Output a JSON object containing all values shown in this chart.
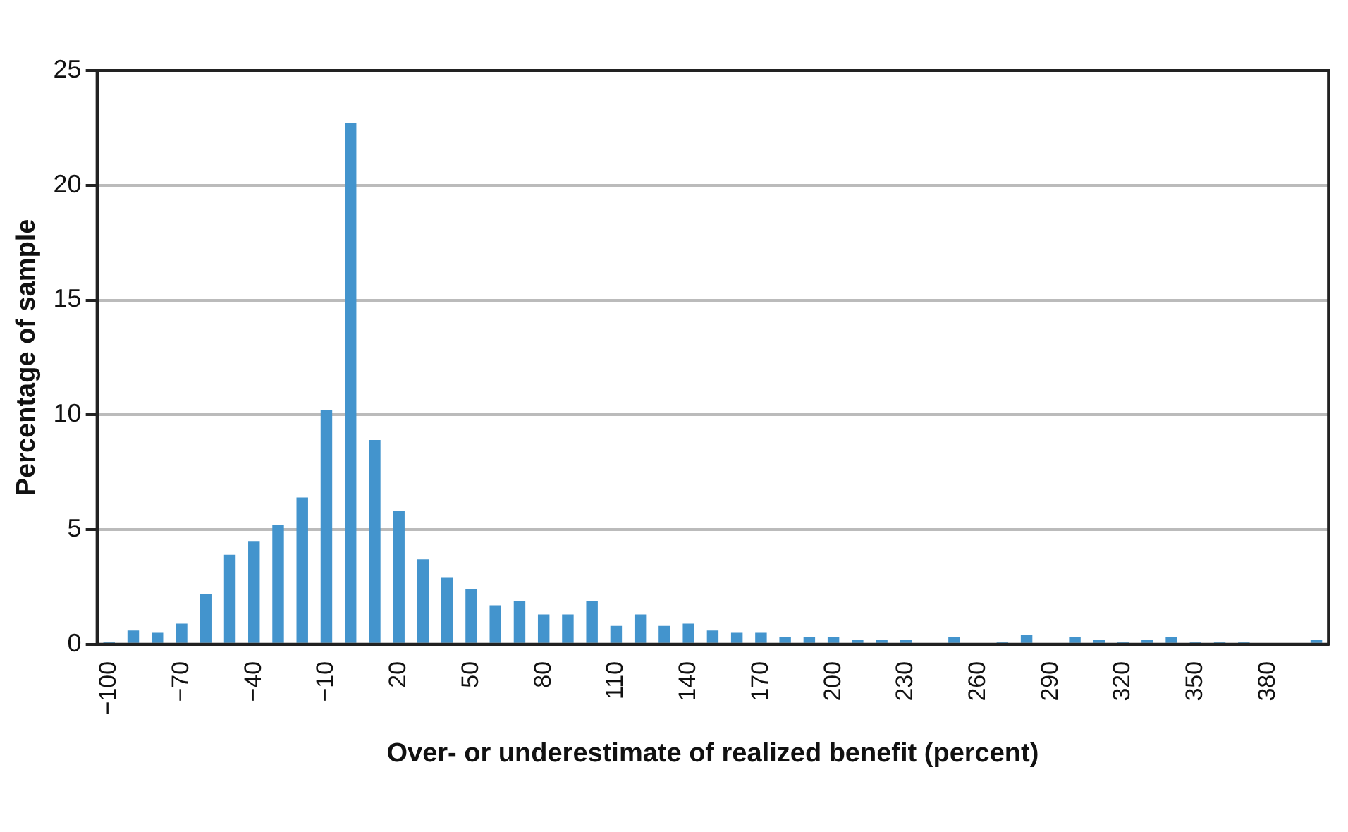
{
  "chart_data": {
    "type": "bar",
    "xlabel": "Over- or underestimate of realized benefit (percent)",
    "ylabel": "Percentage of sample",
    "categories": [
      "−100",
      null,
      null,
      "−70",
      null,
      null,
      "−40",
      null,
      null,
      "−10",
      null,
      null,
      "20",
      null,
      null,
      "50",
      null,
      null,
      "80",
      null,
      null,
      "110",
      null,
      null,
      "140",
      null,
      null,
      "170",
      null,
      null,
      "200",
      null,
      null,
      "230",
      null,
      null,
      "260",
      null,
      null,
      "290",
      null,
      null,
      "320",
      null,
      null,
      "350",
      null,
      null,
      "380",
      null,
      null
    ],
    "values": [
      0.1,
      0.6,
      0.5,
      0.9,
      2.2,
      3.9,
      4.5,
      5.2,
      6.4,
      10.2,
      22.7,
      8.9,
      5.8,
      3.7,
      2.9,
      2.4,
      1.7,
      1.9,
      1.3,
      1.3,
      1.9,
      0.8,
      1.3,
      0.8,
      0.9,
      0.6,
      0.5,
      0.5,
      0.3,
      0.3,
      0.3,
      0.2,
      0.2,
      0.2,
      0,
      0.3,
      0,
      0.1,
      0.4,
      0,
      0.3,
      0.2,
      0.1,
      0.2,
      0.3,
      0.1,
      0.1,
      0.1,
      0,
      0,
      0.2
    ],
    "color": "#4394cd",
    "ylim": [
      0,
      25
    ],
    "yticks": [
      0,
      5,
      10,
      15,
      20,
      25
    ],
    "grid": "y"
  }
}
